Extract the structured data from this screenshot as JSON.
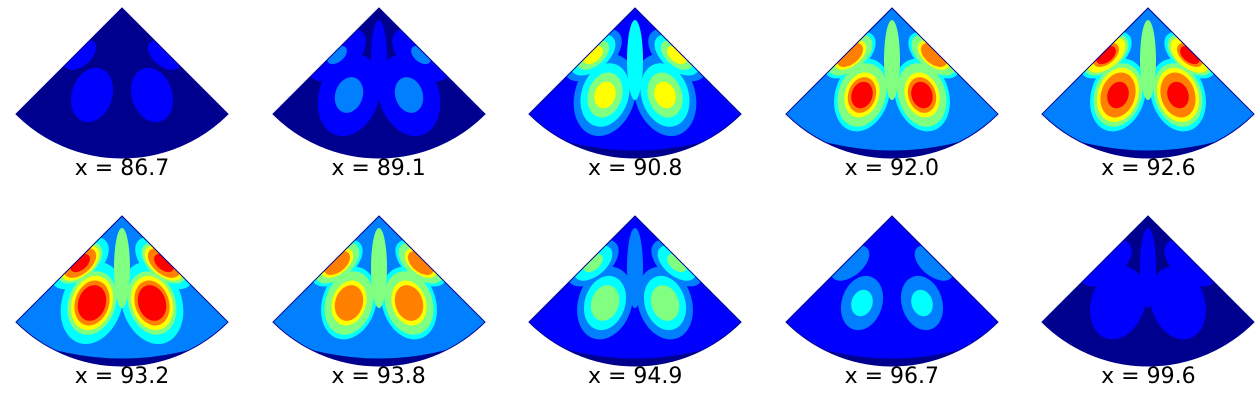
{
  "panels": [
    {
      "label": "x = 86.7",
      "intensity": 0.1
    },
    {
      "label": "x = 89.1",
      "intensity": 0.22
    },
    {
      "label": "x = 90.8",
      "intensity": 0.62
    },
    {
      "label": "x = 92.0",
      "intensity": 0.82
    },
    {
      "label": "x = 92.6",
      "intensity": 0.88
    },
    {
      "label": "x = 93.2",
      "intensity": 0.92
    },
    {
      "label": "x = 93.8",
      "intensity": 0.8
    },
    {
      "label": "x = 94.9",
      "intensity": 0.52
    },
    {
      "label": "x = 96.7",
      "intensity": 0.32
    },
    {
      "label": "x = 99.6",
      "intensity": 0.16
    }
  ],
  "colors": {
    "dark_blue": "#00008f",
    "blue": "#0000ff",
    "light_blue": "#0080ff",
    "cyan": "#00ffff",
    "green": "#80ff80",
    "yellow": "#ffff00",
    "orange": "#ff8000",
    "red": "#ff0000",
    "dark_red": "#800000"
  }
}
